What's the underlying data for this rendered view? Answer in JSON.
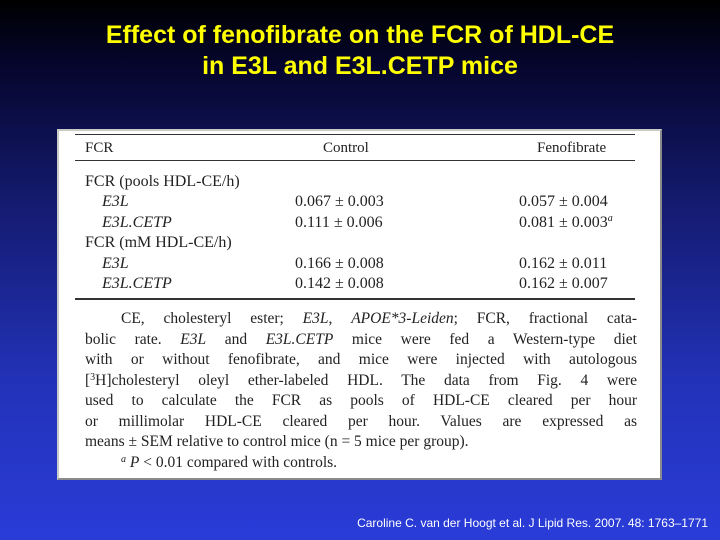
{
  "slide": {
    "title_line1": "Effect of fenofibrate on the FCR of HDL-CE",
    "title_line2": "in E3L and E3L.CETP mice",
    "citation": "Caroline C. van der Hoogt et al. J Lipid Res. 2007. 48: 1763–1771"
  },
  "table": {
    "headers": [
      "FCR",
      "Control",
      "Fenofibrate"
    ],
    "sections": [
      {
        "label": "FCR (pools HDL-CE/h)",
        "rows": [
          {
            "name": "E3L",
            "control": "0.067 ± 0.003",
            "fenofibrate": "0.057 ± 0.004",
            "mark": ""
          },
          {
            "name": "E3L.CETP",
            "control": "0.111 ± 0.006",
            "fenofibrate": "0.081 ± 0.003",
            "mark": "a"
          }
        ]
      },
      {
        "label": "FCR (mM HDL-CE/h)",
        "rows": [
          {
            "name": "E3L",
            "control": "0.166 ± 0.008",
            "fenofibrate": "0.162 ± 0.011",
            "mark": ""
          },
          {
            "name": "E3L.CETP",
            "control": "0.142 ± 0.008",
            "fenofibrate": "0.162 ± 0.007",
            "mark": ""
          }
        ]
      }
    ],
    "footnote": {
      "l1_a": "CE, cholesteryl ester; ",
      "l1_b": "E3L",
      "l1_c": ", ",
      "l1_d": "APOE*3-Leiden",
      "l1_e": "; FCR, fractional cata-",
      "l2_a": "bolic rate. ",
      "l2_b": "E3L",
      "l2_c": " and ",
      "l2_d": "E3L.CETP",
      "l2_e": " mice were fed a Western-type diet",
      "l3": "with or without fenofibrate, and mice were injected with autologous",
      "l4_a": "[",
      "l4_sup": "3",
      "l4_b": "H]cholesteryl oleyl ether-labeled HDL. The data from Fig. 4 were",
      "l5": "used to calculate the FCR as pools of HDL-CE cleared per hour",
      "l6": "or millimolar HDL-CE cleared per hour. Values are expressed as",
      "l7": "means ± SEM relative to control mice (n = 5 mice per group).",
      "sig_mark": "a",
      "sig_p": "P",
      "sig_text": " < 0.01 compared with controls."
    }
  }
}
